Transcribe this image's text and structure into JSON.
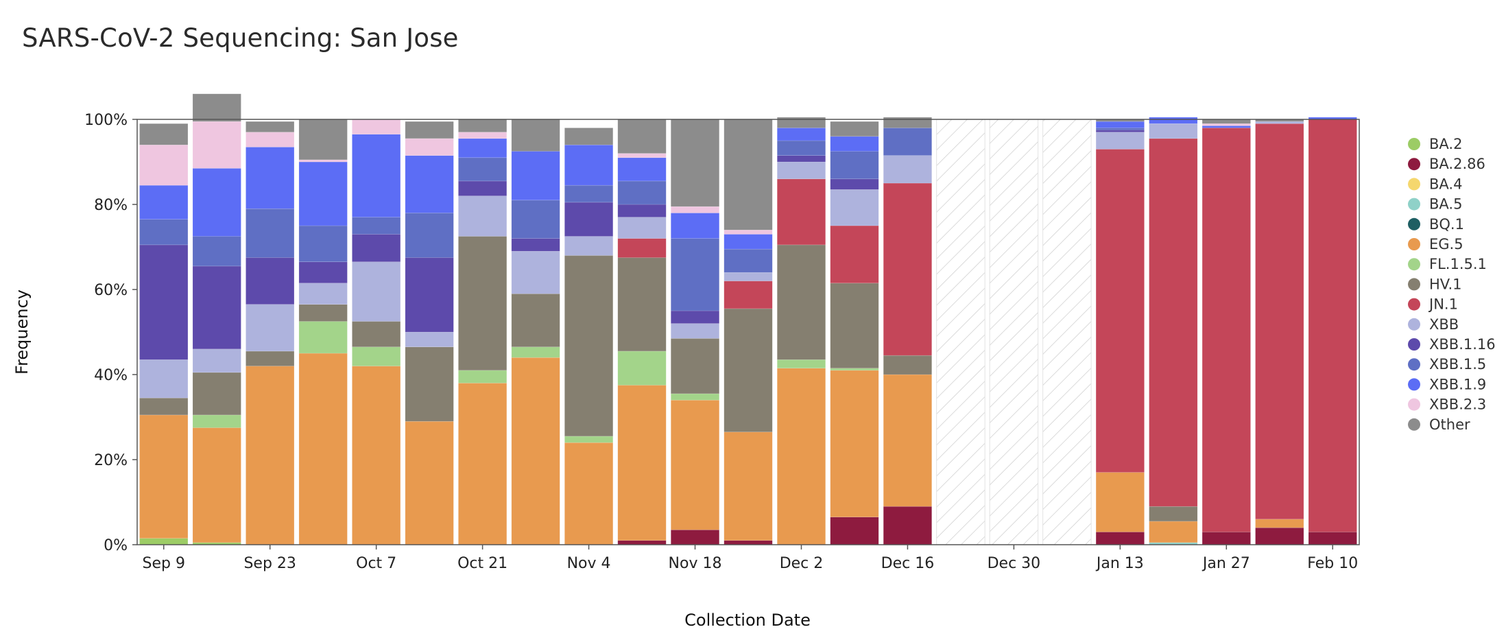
{
  "chart_data": {
    "type": "bar",
    "stacked": true,
    "title": "SARS-CoV-2 Sequencing: San Jose",
    "xlabel": "Collection Date",
    "ylabel": "Frequency",
    "ylim": [
      0,
      100
    ],
    "y_ticks": [
      "0%",
      "20%",
      "40%",
      "60%",
      "80%",
      "100%"
    ],
    "x_tick_labels": [
      {
        "index": 0,
        "label": "Sep 9"
      },
      {
        "index": 2,
        "label": "Sep 23"
      },
      {
        "index": 4,
        "label": "Oct 7"
      },
      {
        "index": 6,
        "label": "Oct 21"
      },
      {
        "index": 8,
        "label": "Nov 4"
      },
      {
        "index": 10,
        "label": "Nov 18"
      },
      {
        "index": 12,
        "label": "Dec 2"
      },
      {
        "index": 14,
        "label": "Dec 16"
      },
      {
        "index": 16,
        "label": "Dec 30"
      },
      {
        "index": 18,
        "label": "Jan 13"
      },
      {
        "index": 20,
        "label": "Jan 27"
      },
      {
        "index": 22,
        "label": "Feb 10"
      }
    ],
    "categories": [
      "Sep 9",
      "Sep 16",
      "Sep 23",
      "Sep 30",
      "Oct 7",
      "Oct 14",
      "Oct 21",
      "Oct 28",
      "Nov 4",
      "Nov 11",
      "Nov 18",
      "Nov 25",
      "Dec 2",
      "Dec 9",
      "Dec 16",
      "Dec 23",
      "Dec 30",
      "Jan 6",
      "Jan 13",
      "Jan 20",
      "Jan 27",
      "Feb 3",
      "Feb 10"
    ],
    "no_data_weeks": [
      "Dec 23",
      "Dec 30",
      "Jan 6"
    ],
    "legend_position": "right",
    "series": [
      {
        "name": "BA.2",
        "color": "#9ccc65",
        "values": [
          1.5,
          0.5,
          0,
          0,
          0,
          0,
          0,
          0,
          0,
          0,
          0,
          0,
          0,
          0,
          0,
          0,
          0,
          0,
          0,
          0,
          0,
          0,
          0
        ]
      },
      {
        "name": "BA.2.86",
        "color": "#8e1b3f",
        "values": [
          0,
          0,
          0,
          0,
          0,
          0,
          0,
          0,
          0,
          1,
          3.5,
          1,
          0,
          6.5,
          9,
          0,
          0,
          0,
          3,
          0,
          3,
          4,
          3
        ]
      },
      {
        "name": "BA.4",
        "color": "#f5d76e",
        "values": [
          0,
          0,
          0,
          0,
          0,
          0,
          0,
          0,
          0,
          0,
          0,
          0,
          0,
          0,
          0,
          0,
          0,
          0,
          0,
          0,
          0,
          0,
          0
        ]
      },
      {
        "name": "BA.5",
        "color": "#8fd1c8",
        "values": [
          0,
          0,
          0,
          0,
          0,
          0,
          0,
          0,
          0,
          0,
          0,
          0,
          0,
          0,
          0,
          0,
          0,
          0,
          0,
          0.5,
          0,
          0,
          0
        ]
      },
      {
        "name": "BQ.1",
        "color": "#1f5f63",
        "values": [
          0,
          0,
          0,
          0,
          0,
          0,
          0,
          0,
          0,
          0,
          0,
          0,
          0,
          0,
          0,
          0,
          0,
          0,
          0,
          0,
          0,
          0,
          0
        ]
      },
      {
        "name": "EG.5",
        "color": "#e89a4f",
        "values": [
          29,
          27,
          42,
          45,
          42,
          29,
          38,
          44,
          24,
          36.5,
          30.5,
          25.5,
          41.5,
          34.5,
          31,
          0,
          0,
          0,
          14,
          5,
          0,
          2,
          0
        ]
      },
      {
        "name": "FL.1.5.1",
        "color": "#a3d48a",
        "values": [
          0,
          3,
          0,
          7.5,
          4.5,
          0,
          3,
          2.5,
          1.5,
          8,
          1.5,
          0,
          2,
          0.5,
          0,
          0,
          0,
          0,
          0,
          0,
          0,
          0,
          0
        ]
      },
      {
        "name": "HV.1",
        "color": "#857f70",
        "values": [
          4,
          10,
          3.5,
          4,
          6,
          17.5,
          31.5,
          12.5,
          42.5,
          22,
          13,
          29,
          27,
          20,
          4.5,
          0,
          0,
          0,
          0,
          3.5,
          0,
          0,
          0
        ]
      },
      {
        "name": "JN.1",
        "color": "#c44659",
        "values": [
          0,
          0,
          0,
          0,
          0,
          0,
          0,
          0,
          0,
          4.5,
          0,
          6.5,
          15.5,
          13.5,
          40.5,
          0,
          0,
          0,
          76,
          86.5,
          95,
          93,
          97
        ]
      },
      {
        "name": "XBB",
        "color": "#aeb3dd",
        "values": [
          9,
          5.5,
          11,
          5,
          14,
          3.5,
          9.5,
          10,
          4.5,
          5,
          3.5,
          2,
          4,
          8.5,
          6.5,
          0,
          0,
          0,
          4,
          3.5,
          0,
          0.5,
          0
        ]
      },
      {
        "name": "XBB.1.16",
        "color": "#5d4aab",
        "values": [
          27,
          19.5,
          11,
          5,
          6.5,
          17.5,
          3.5,
          3,
          8,
          3,
          3,
          0,
          1.5,
          2.5,
          0,
          0,
          0,
          0,
          0.5,
          0,
          0,
          0,
          0
        ]
      },
      {
        "name": "XBB.1.5",
        "color": "#5f6fc4",
        "values": [
          6,
          7,
          11.5,
          8.5,
          4,
          10.5,
          5.5,
          9,
          4,
          5.5,
          17,
          5.5,
          3.5,
          6.5,
          6.5,
          0,
          0,
          0,
          0.5,
          0,
          0,
          0,
          0
        ]
      },
      {
        "name": "XBB.1.9",
        "color": "#5c6df5",
        "values": [
          8,
          16,
          14.5,
          15,
          19.5,
          13.5,
          4.5,
          11.5,
          9.5,
          5.5,
          6,
          3.5,
          3,
          3.5,
          0,
          0,
          0,
          0,
          1.5,
          1.5,
          0.5,
          0,
          0.5
        ]
      },
      {
        "name": "XBB.2.3",
        "color": "#efc6e0",
        "values": [
          9.5,
          11,
          3.5,
          0.5,
          3.5,
          4,
          1.5,
          0,
          0,
          1,
          1.5,
          1,
          0,
          0,
          0,
          0,
          0,
          0,
          0,
          0,
          0.5,
          0,
          0
        ]
      },
      {
        "name": "Other",
        "color": "#8c8c8c",
        "values": [
          5,
          6.5,
          2.5,
          9.5,
          0,
          4,
          3,
          7.5,
          4,
          8,
          20.5,
          26,
          2.5,
          3.5,
          2.5,
          0,
          0,
          0,
          0.5,
          0,
          1,
          0.5,
          0
        ]
      }
    ]
  }
}
